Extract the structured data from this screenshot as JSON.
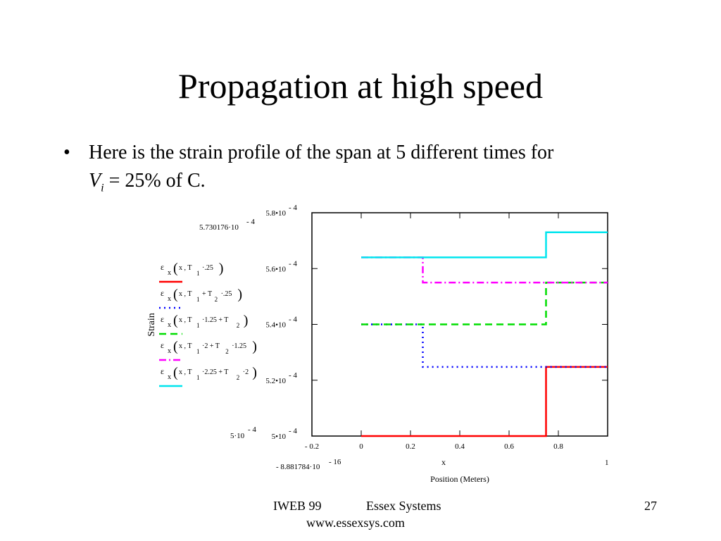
{
  "slide": {
    "title": "Propagation at high speed",
    "bullet_marker": "•",
    "bullet_line1": "Here is the strain profile of the span at 5 different times for",
    "bullet_v": "V",
    "bullet_sub": "i",
    "bullet_rest": " = 25% of C."
  },
  "footer": {
    "left": "IWEB 99",
    "mid": "Essex Systems",
    "url": "www.essexsys.com",
    "page": "27"
  },
  "chart_data": {
    "type": "line",
    "ylabel": "Strain",
    "xlabel_var": "x",
    "xlabel": "Position (Meters)",
    "xlim": [
      -0.2,
      1
    ],
    "ylim": [
      0.0005,
      0.00058
    ],
    "x_ticks": [
      {
        "v": -0.2,
        "label": "- 0.2"
      },
      {
        "v": 0,
        "label": "0"
      },
      {
        "v": 0.2,
        "label": "0.2"
      },
      {
        "v": 0.4,
        "label": "0.4"
      },
      {
        "v": 0.6,
        "label": "0.6"
      },
      {
        "v": 0.8,
        "label": "0.8"
      }
    ],
    "y_ticks": [
      {
        "v": 0.0005,
        "base": "5•10",
        "exp": "- 4"
      },
      {
        "v": 0.00052,
        "base": "5.2•10",
        "exp": "- 4"
      },
      {
        "v": 0.00054,
        "base": "5.4•10",
        "exp": "- 4"
      },
      {
        "v": 0.00056,
        "base": "5.6•10",
        "exp": "- 4"
      },
      {
        "v": 0.00058,
        "base": "5.8•10",
        "exp": "- 4"
      }
    ],
    "range_labels": {
      "ymax": {
        "base": "5.730176·10",
        "exp": "- 4"
      },
      "ymin": {
        "base": "5·10",
        "exp": "- 4"
      },
      "xmin": {
        "base": "- 8.881784·10",
        "exp": "- 16"
      },
      "xmax": "1"
    },
    "grid": false,
    "legend_position": "left",
    "series": [
      {
        "name": "ε x (x, T 1 ·.25)",
        "color": "#ff0000",
        "dash": "solid",
        "points": [
          [
            0,
            0.0005
          ],
          [
            0.75,
            0.0005
          ],
          [
            0.75,
            0.00052475
          ],
          [
            1,
            0.00052475
          ]
        ]
      },
      {
        "name": "ε x (x, T 1 + T 2 ·.25)",
        "color": "#0000ff",
        "dash": "dot",
        "points": [
          [
            0,
            0.00054
          ],
          [
            0.25,
            0.00054
          ],
          [
            0.25,
            0.00052475
          ],
          [
            1,
            0.00052475
          ]
        ]
      },
      {
        "name": "ε x (x, T 1 ·1.25 + T 2)",
        "color": "#00dd00",
        "dash": "dash",
        "points": [
          [
            0,
            0.00054
          ],
          [
            0.75,
            0.00054
          ],
          [
            0.75,
            0.000555
          ],
          [
            1,
            0.000555
          ]
        ]
      },
      {
        "name": "ε x (x, T 1 ·2 + T 2 ·1.25)",
        "color": "#ff00ff",
        "dash": "dashdot",
        "points": [
          [
            0,
            0.000564
          ],
          [
            0.25,
            0.000564
          ],
          [
            0.25,
            0.000555
          ],
          [
            1,
            0.000555
          ]
        ]
      },
      {
        "name": "ε x (x, T 1 ·2.25 + T 2 ·2)",
        "color": "#00e5ee",
        "dash": "solid",
        "points": [
          [
            0,
            0.000564
          ],
          [
            0.75,
            0.000564
          ],
          [
            0.75,
            0.000573
          ],
          [
            1,
            0.000573
          ]
        ]
      }
    ],
    "legend": [
      {
        "eps": "ε",
        "sub": "x",
        "args": "x , T",
        "idx1": "1",
        "tail": "·.25",
        "idx2": ""
      },
      {
        "eps": "ε",
        "sub": "x",
        "args": "x , T",
        "idx1": "1",
        "tail": "+ T",
        "idx2": "2",
        "tail2": "·.25"
      },
      {
        "eps": "ε",
        "sub": "x",
        "args": "x , T",
        "idx1": "1",
        "tail": "·1.25 + T",
        "idx2": "2",
        "tail2": ""
      },
      {
        "eps": "ε",
        "sub": "x",
        "args": "x , T",
        "idx1": "1",
        "tail": "·2 + T",
        "idx2": "2",
        "tail2": "·1.25"
      },
      {
        "eps": "ε",
        "sub": "x",
        "args": "x , T",
        "idx1": "1",
        "tail": "·2.25 + T",
        "idx2": "2",
        "tail2": "·2"
      }
    ]
  }
}
